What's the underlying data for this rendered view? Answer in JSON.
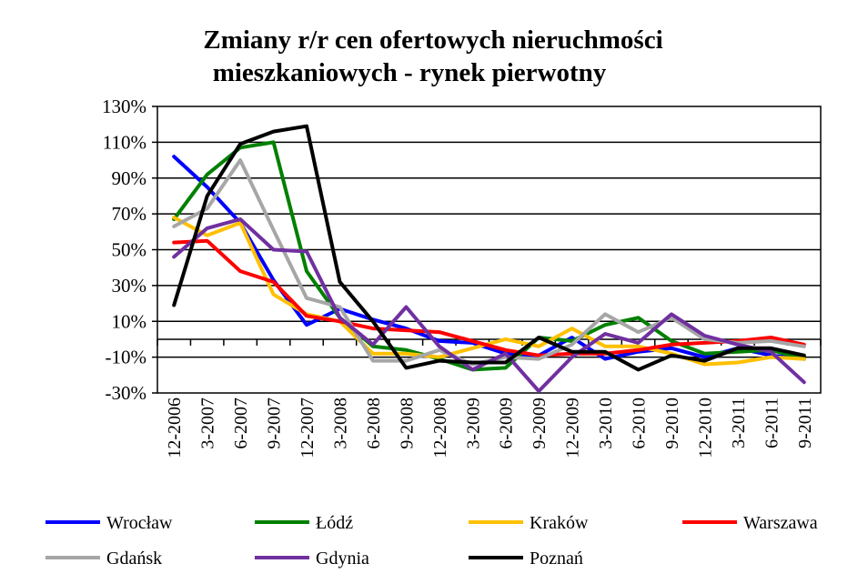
{
  "chart_data": {
    "type": "line",
    "title": "Zmiany r/r cen ofertowych nieruchmości",
    "subtitle": "mieszkaniowych - rynek pierwotny",
    "xlabel": "",
    "ylabel": "",
    "ylim": [
      -30,
      130
    ],
    "y_ticks": [
      "130%",
      "110%",
      "90%",
      "70%",
      "50%",
      "30%",
      "10%",
      "-10%",
      "-30%"
    ],
    "categories": [
      "12-2006",
      "3-2007",
      "6-2007",
      "9-2007",
      "12-2007",
      "3-2008",
      "6-2008",
      "9-2008",
      "12-2008",
      "3-2009",
      "6-2009",
      "9-2009",
      "12-2009",
      "3-2010",
      "6-2010",
      "9-2010",
      "12-2010",
      "3-2011",
      "6-2011",
      "9-2011"
    ],
    "grid": true,
    "legend_position": "bottom",
    "series": [
      {
        "name": "Wrocław",
        "color": "#0000ff",
        "values": [
          102,
          85,
          65,
          33,
          8,
          17,
          11,
          6,
          -1,
          -2,
          -8,
          -9,
          1,
          -11,
          -7,
          -5,
          -10,
          -5,
          -9,
          -11
        ]
      },
      {
        "name": "Łódź",
        "color": "#008000",
        "values": [
          67,
          92,
          107,
          110,
          38,
          12,
          -4,
          -6,
          -11,
          -17,
          -16,
          1,
          -1,
          8,
          12,
          -1,
          -8,
          -7,
          -6,
          -11
        ]
      },
      {
        "name": "Kraków",
        "color": "#ffc000",
        "values": [
          68,
          58,
          65,
          25,
          14,
          10,
          -8,
          -8,
          -10,
          -5,
          0,
          -4,
          6,
          -4,
          -4,
          -8,
          -14,
          -13,
          -10,
          -11
        ]
      },
      {
        "name": "Warszawa",
        "color": "#ff0000",
        "values": [
          54,
          55,
          38,
          32,
          13,
          10,
          6,
          5,
          4,
          -1,
          -6,
          -9,
          -8,
          -8,
          -6,
          -3,
          -2,
          -1,
          1,
          -3
        ]
      },
      {
        "name": "Gdańsk",
        "color": "#a6a6a6",
        "values": [
          63,
          73,
          100,
          61,
          23,
          18,
          -12,
          -12,
          -6,
          -14,
          -10,
          -11,
          -3,
          14,
          4,
          12,
          0,
          -2,
          -1,
          -4
        ]
      },
      {
        "name": "Gdynia",
        "color": "#7030a0",
        "values": [
          46,
          62,
          67,
          50,
          49,
          12,
          -3,
          18,
          -4,
          -17,
          -8,
          -29,
          -10,
          3,
          -2,
          14,
          2,
          -3,
          -7,
          -24
        ]
      },
      {
        "name": "Poznań",
        "color": "#000000",
        "values": [
          19,
          80,
          109,
          116,
          119,
          32,
          10,
          -16,
          -12,
          -13,
          -13,
          1,
          -7,
          -7,
          -17,
          -9,
          -12,
          -5,
          -5,
          -9
        ]
      }
    ]
  }
}
